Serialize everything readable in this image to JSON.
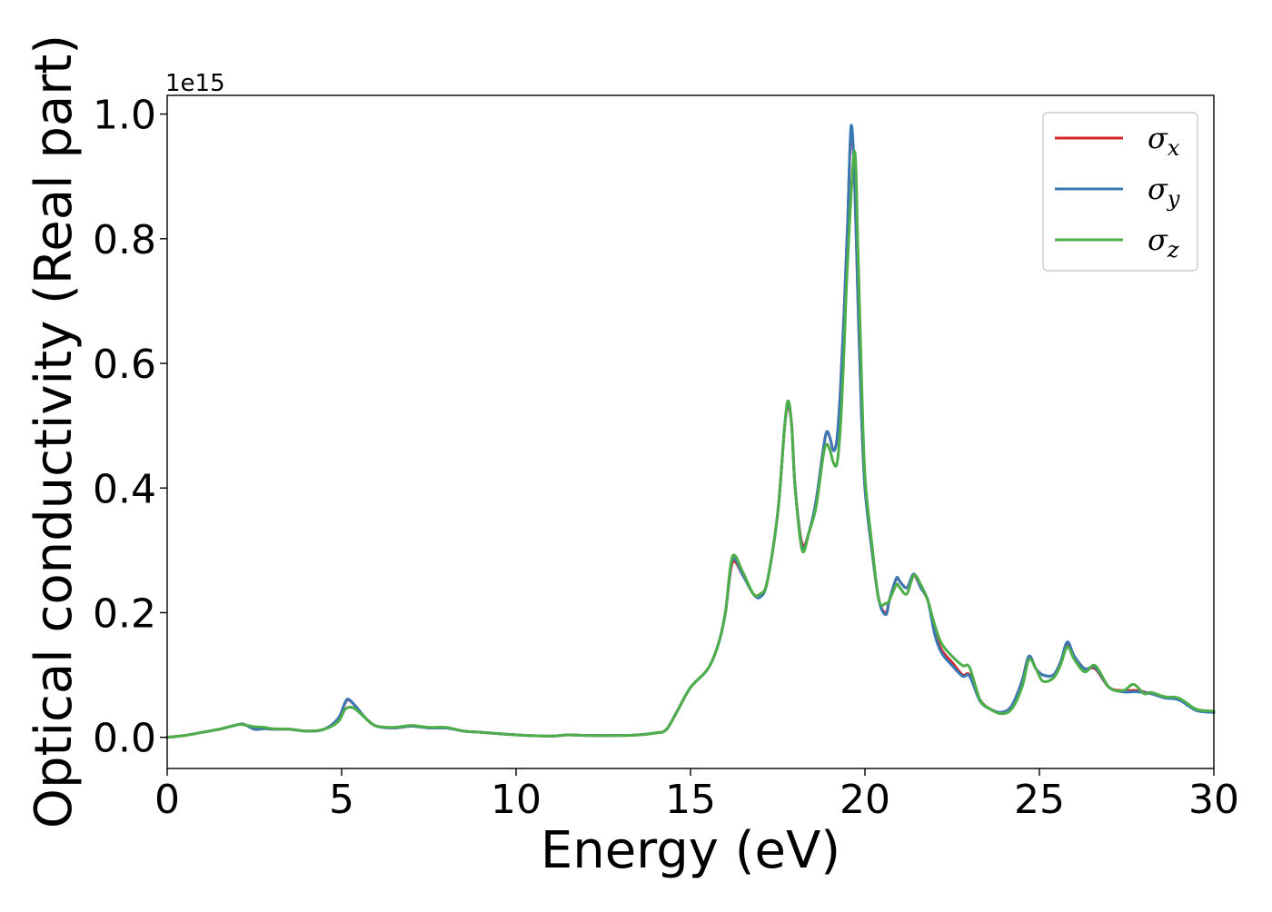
{
  "chart_data": {
    "type": "line",
    "xlabel": "Energy (eV)",
    "ylabel": "Optical conductivity (Real part)",
    "y_offset_label": "1e15",
    "y_scale": 1000000000000000.0,
    "xlim": [
      0,
      30
    ],
    "ylim": [
      -0.05,
      1.03
    ],
    "xticks": [
      0,
      5,
      10,
      15,
      20,
      25,
      30
    ],
    "xtick_labels": [
      "0",
      "5",
      "10",
      "15",
      "20",
      "25",
      "30"
    ],
    "yticks": [
      0.0,
      0.2,
      0.4,
      0.6,
      0.8,
      1.0
    ],
    "ytick_labels": [
      "0.0",
      "0.2",
      "0.4",
      "0.6",
      "0.8",
      "1.0"
    ],
    "grid": false,
    "legend_position": "top-right",
    "series": [
      {
        "name": "σx",
        "legend": {
          "base": "σ",
          "sub": "x"
        },
        "color": "#d62728",
        "x": [
          0,
          0.5,
          1.0,
          1.5,
          2.0,
          2.2,
          2.5,
          2.8,
          3.0,
          3.5,
          4.0,
          4.5,
          4.9,
          5.1,
          5.2,
          5.4,
          5.7,
          6.0,
          6.5,
          7.0,
          7.5,
          8.0,
          8.5,
          9.0,
          10.0,
          11.0,
          11.5,
          12.0,
          13.0,
          13.5,
          14.0,
          14.3,
          14.6,
          15.0,
          15.5,
          15.8,
          16.0,
          16.2,
          16.5,
          16.8,
          17.0,
          17.2,
          17.5,
          17.7,
          17.8,
          17.9,
          18.0,
          18.2,
          18.4,
          18.6,
          18.8,
          18.9,
          19.0,
          19.1,
          19.2,
          19.3,
          19.4,
          19.5,
          19.6,
          19.7,
          19.8,
          19.9,
          20.0,
          20.2,
          20.4,
          20.6,
          20.7,
          20.9,
          21.0,
          21.2,
          21.4,
          21.6,
          21.8,
          22.0,
          22.2,
          22.5,
          22.8,
          23.0,
          23.3,
          23.6,
          23.9,
          24.2,
          24.5,
          24.7,
          24.9,
          25.1,
          25.4,
          25.6,
          25.8,
          26.0,
          26.3,
          26.6,
          27.0,
          27.4,
          27.8,
          28.2,
          28.6,
          29.0,
          29.5,
          30.0
        ],
        "values": [
          0,
          0.003,
          0.008,
          0.013,
          0.02,
          0.021,
          0.013,
          0.014,
          0.013,
          0.013,
          0.01,
          0.013,
          0.03,
          0.055,
          0.06,
          0.05,
          0.03,
          0.018,
          0.015,
          0.018,
          0.015,
          0.015,
          0.01,
          0.008,
          0.004,
          0.002,
          0.004,
          0.003,
          0.003,
          0.004,
          0.007,
          0.012,
          0.04,
          0.08,
          0.11,
          0.15,
          0.2,
          0.28,
          0.26,
          0.23,
          0.23,
          0.25,
          0.36,
          0.5,
          0.53,
          0.5,
          0.4,
          0.31,
          0.33,
          0.38,
          0.46,
          0.49,
          0.48,
          0.46,
          0.48,
          0.56,
          0.68,
          0.82,
          0.97,
          0.9,
          0.7,
          0.52,
          0.4,
          0.3,
          0.22,
          0.2,
          0.22,
          0.255,
          0.25,
          0.24,
          0.26,
          0.24,
          0.22,
          0.17,
          0.14,
          0.12,
          0.1,
          0.1,
          0.06,
          0.045,
          0.04,
          0.05,
          0.09,
          0.13,
          0.11,
          0.1,
          0.1,
          0.12,
          0.15,
          0.13,
          0.11,
          0.11,
          0.08,
          0.075,
          0.075,
          0.07,
          0.065,
          0.06,
          0.045,
          0.04
        ]
      },
      {
        "name": "σy",
        "legend": {
          "base": "σ",
          "sub": "y"
        },
        "color": "#3a78b5",
        "x": [
          0,
          0.5,
          1.0,
          1.5,
          2.0,
          2.2,
          2.5,
          2.8,
          3.0,
          3.5,
          4.0,
          4.5,
          4.9,
          5.1,
          5.2,
          5.4,
          5.7,
          6.0,
          6.5,
          7.0,
          7.5,
          8.0,
          8.5,
          9.0,
          10.0,
          11.0,
          11.5,
          12.0,
          13.0,
          13.5,
          14.0,
          14.3,
          14.6,
          15.0,
          15.5,
          15.8,
          16.0,
          16.2,
          16.5,
          16.8,
          17.0,
          17.2,
          17.5,
          17.7,
          17.8,
          17.9,
          18.0,
          18.2,
          18.4,
          18.6,
          18.8,
          18.9,
          19.0,
          19.1,
          19.2,
          19.3,
          19.4,
          19.5,
          19.6,
          19.7,
          19.8,
          19.9,
          20.0,
          20.2,
          20.4,
          20.6,
          20.7,
          20.9,
          21.0,
          21.2,
          21.4,
          21.6,
          21.8,
          22.0,
          22.2,
          22.5,
          22.8,
          23.0,
          23.3,
          23.6,
          23.9,
          24.2,
          24.5,
          24.7,
          24.9,
          25.1,
          25.4,
          25.6,
          25.8,
          26.0,
          26.3,
          26.6,
          27.0,
          27.4,
          27.8,
          28.2,
          28.6,
          29.0,
          29.5,
          30.0
        ],
        "values": [
          0,
          0.003,
          0.008,
          0.013,
          0.02,
          0.021,
          0.013,
          0.014,
          0.013,
          0.013,
          0.01,
          0.013,
          0.03,
          0.056,
          0.061,
          0.05,
          0.03,
          0.018,
          0.015,
          0.018,
          0.015,
          0.015,
          0.01,
          0.008,
          0.004,
          0.002,
          0.004,
          0.003,
          0.003,
          0.004,
          0.007,
          0.012,
          0.04,
          0.08,
          0.11,
          0.15,
          0.2,
          0.285,
          0.26,
          0.23,
          0.225,
          0.25,
          0.36,
          0.5,
          0.535,
          0.5,
          0.4,
          0.305,
          0.33,
          0.38,
          0.46,
          0.49,
          0.48,
          0.46,
          0.48,
          0.56,
          0.68,
          0.82,
          0.98,
          0.9,
          0.7,
          0.52,
          0.4,
          0.3,
          0.22,
          0.197,
          0.22,
          0.255,
          0.25,
          0.24,
          0.262,
          0.24,
          0.22,
          0.165,
          0.135,
          0.115,
          0.098,
          0.098,
          0.058,
          0.045,
          0.04,
          0.05,
          0.09,
          0.13,
          0.11,
          0.1,
          0.1,
          0.12,
          0.153,
          0.13,
          0.11,
          0.112,
          0.08,
          0.073,
          0.073,
          0.07,
          0.063,
          0.06,
          0.043,
          0.04
        ]
      },
      {
        "name": "σz",
        "legend": {
          "base": "σ",
          "sub": "z"
        },
        "color": "#4daf4a",
        "x": [
          0,
          0.5,
          1.0,
          1.5,
          2.0,
          2.2,
          2.5,
          2.8,
          3.0,
          3.5,
          4.0,
          4.5,
          4.9,
          5.1,
          5.3,
          5.5,
          5.8,
          6.0,
          6.5,
          7.0,
          7.5,
          8.0,
          8.5,
          9.0,
          10.0,
          11.0,
          11.5,
          12.0,
          13.0,
          13.5,
          14.0,
          14.3,
          14.6,
          15.0,
          15.5,
          15.8,
          16.0,
          16.2,
          16.5,
          16.8,
          17.0,
          17.2,
          17.5,
          17.7,
          17.8,
          17.9,
          18.0,
          18.2,
          18.4,
          18.6,
          18.8,
          18.9,
          19.0,
          19.1,
          19.2,
          19.3,
          19.4,
          19.5,
          19.7,
          19.8,
          19.9,
          20.0,
          20.2,
          20.4,
          20.6,
          20.7,
          20.9,
          21.0,
          21.2,
          21.4,
          21.6,
          21.8,
          22.0,
          22.2,
          22.5,
          22.8,
          23.0,
          23.3,
          23.6,
          23.9,
          24.2,
          24.5,
          24.7,
          24.9,
          25.1,
          25.4,
          25.6,
          25.8,
          26.0,
          26.3,
          26.6,
          27.0,
          27.4,
          27.7,
          28.0,
          28.2,
          28.6,
          29.0,
          29.5,
          30.0
        ],
        "values": [
          0,
          0.003,
          0.008,
          0.013,
          0.02,
          0.02,
          0.017,
          0.016,
          0.014,
          0.013,
          0.01,
          0.013,
          0.025,
          0.045,
          0.048,
          0.04,
          0.025,
          0.018,
          0.016,
          0.019,
          0.016,
          0.016,
          0.01,
          0.008,
          0.004,
          0.002,
          0.004,
          0.003,
          0.003,
          0.004,
          0.007,
          0.012,
          0.04,
          0.08,
          0.11,
          0.15,
          0.2,
          0.29,
          0.265,
          0.23,
          0.23,
          0.25,
          0.36,
          0.5,
          0.54,
          0.5,
          0.4,
          0.3,
          0.33,
          0.37,
          0.45,
          0.47,
          0.46,
          0.44,
          0.44,
          0.5,
          0.62,
          0.76,
          0.94,
          0.78,
          0.58,
          0.42,
          0.31,
          0.22,
          0.215,
          0.22,
          0.245,
          0.24,
          0.23,
          0.26,
          0.245,
          0.22,
          0.18,
          0.15,
          0.13,
          0.115,
          0.112,
          0.06,
          0.045,
          0.038,
          0.045,
          0.08,
          0.125,
          0.11,
          0.09,
          0.095,
          0.115,
          0.145,
          0.125,
          0.105,
          0.115,
          0.08,
          0.075,
          0.085,
          0.07,
          0.072,
          0.065,
          0.063,
          0.045,
          0.042
        ]
      }
    ]
  }
}
